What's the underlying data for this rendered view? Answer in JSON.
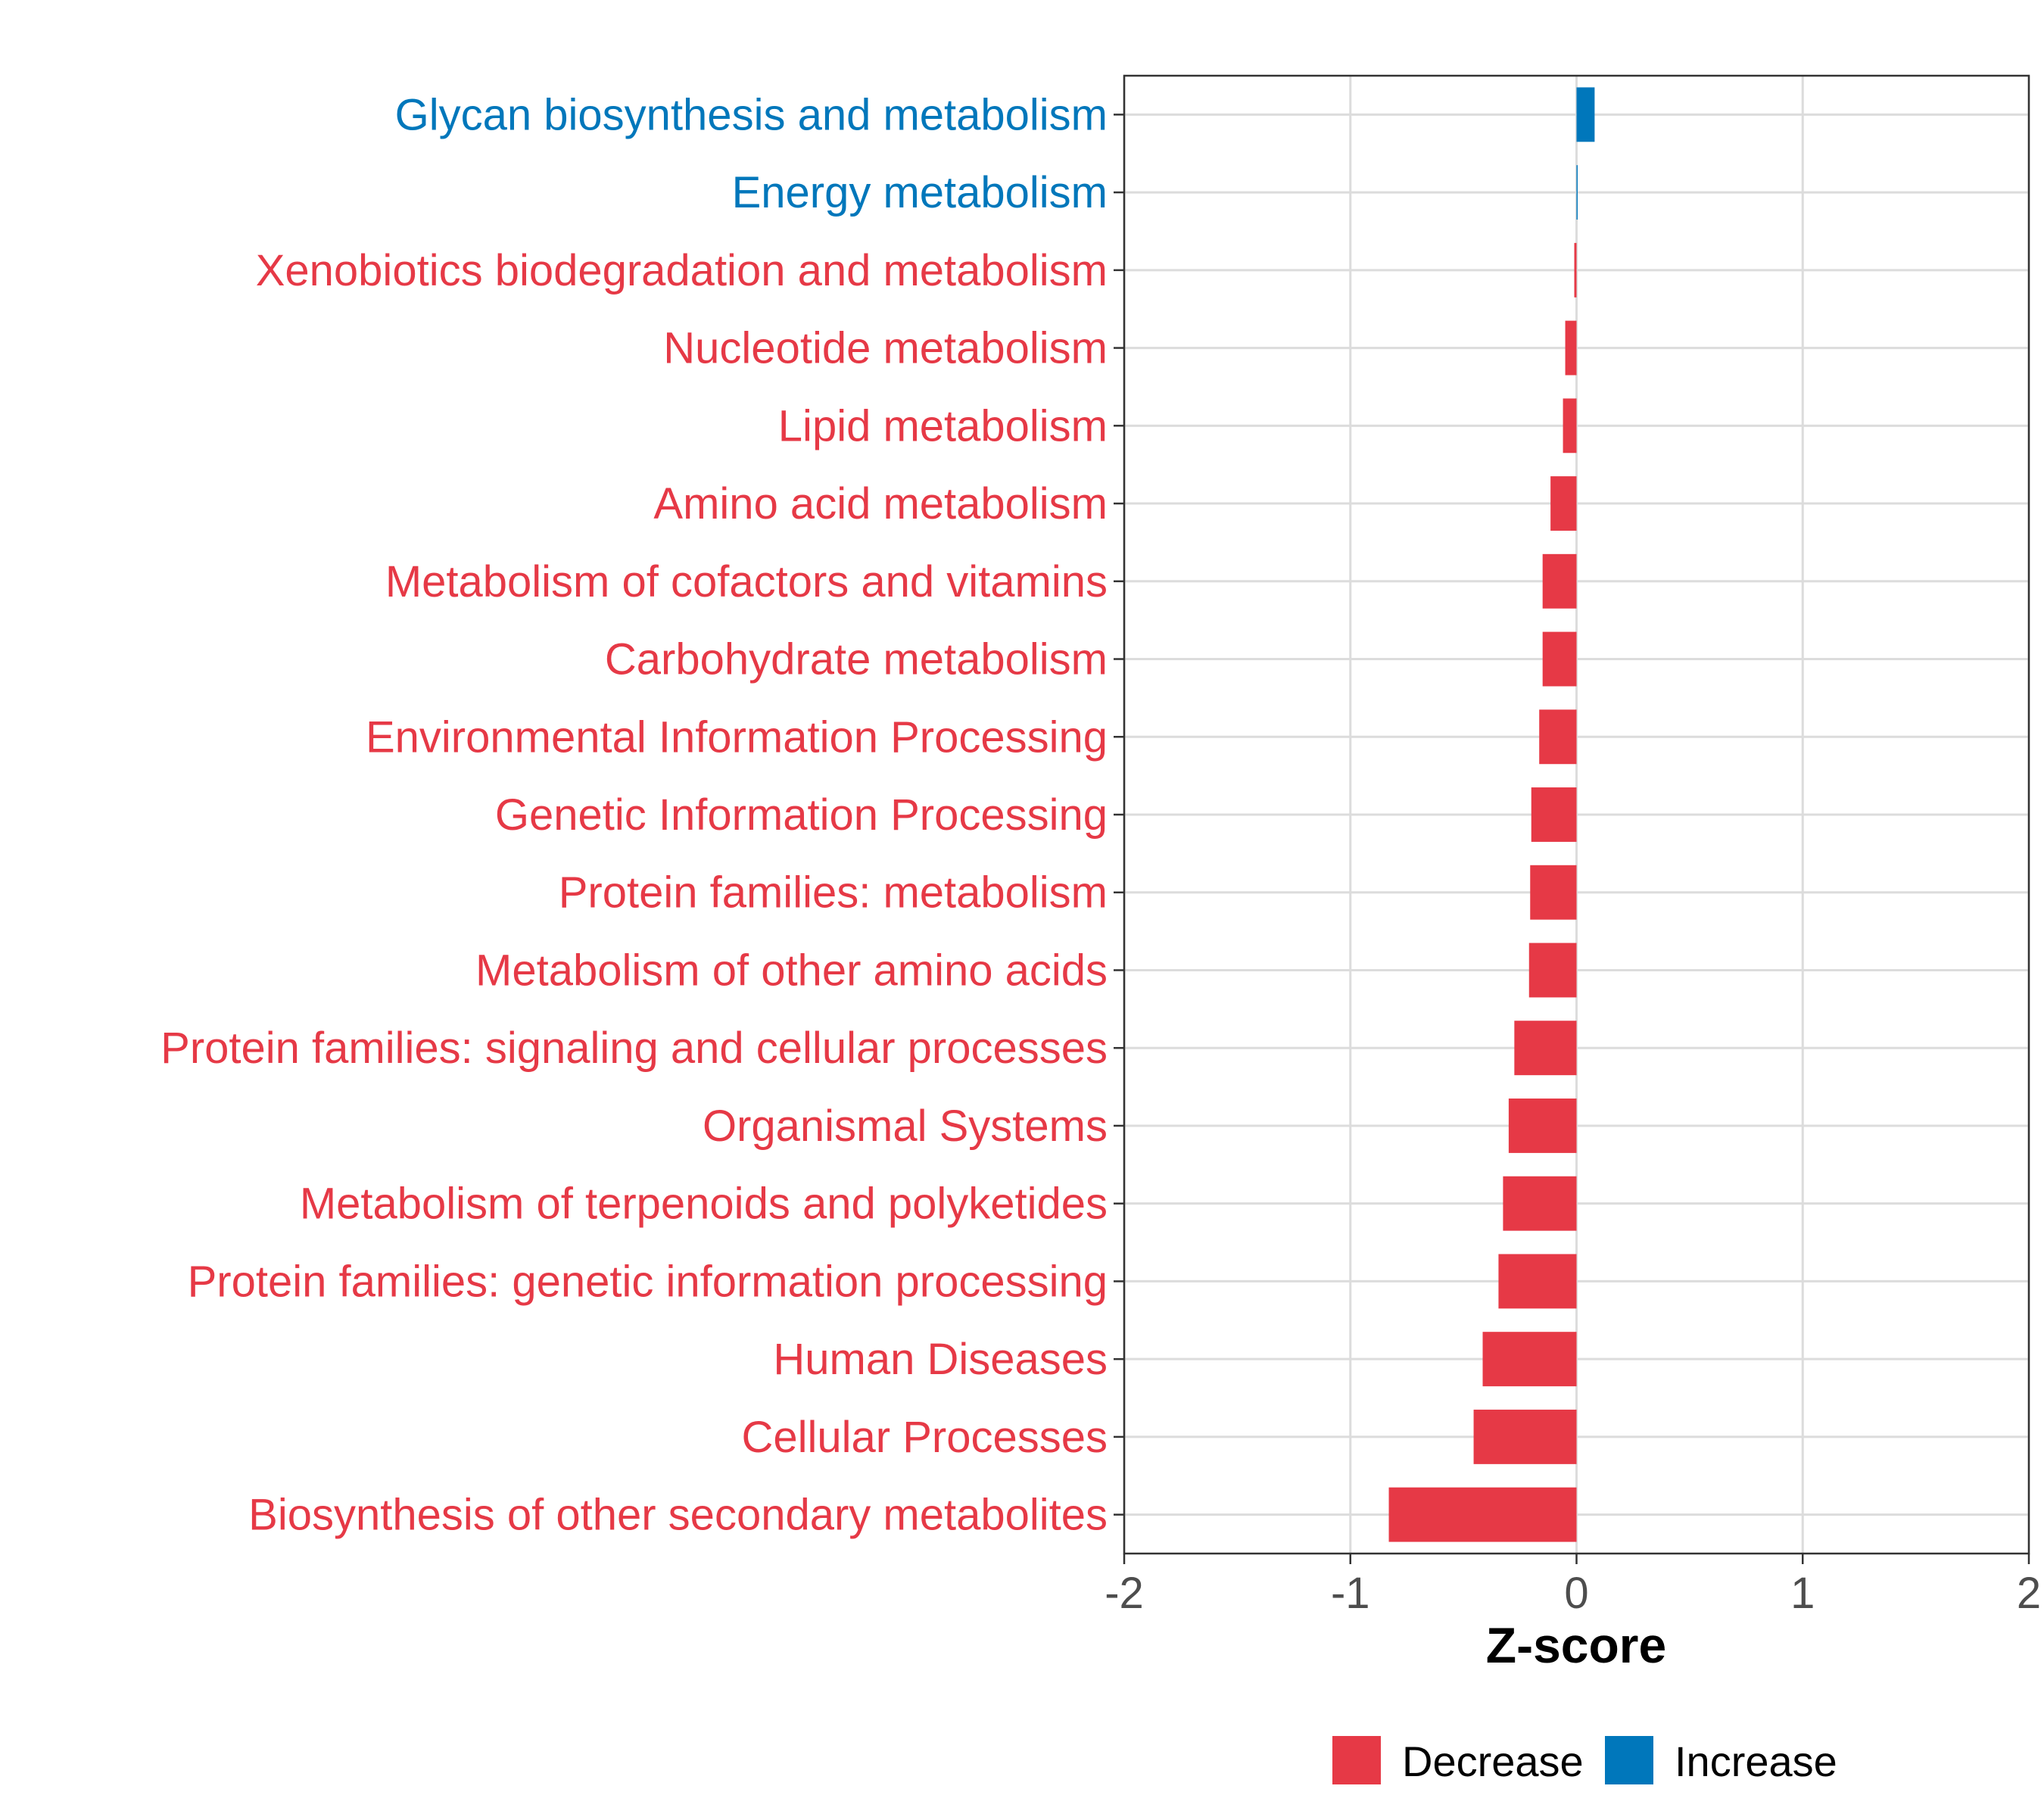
{
  "chart_data": {
    "type": "bar",
    "orientation": "horizontal",
    "categories": [
      "Glycan biosynthesis and metabolism",
      "Energy metabolism",
      "Xenobiotics biodegradation and metabolism",
      "Nucleotide metabolism",
      "Lipid metabolism",
      "Amino acid metabolism",
      "Metabolism of cofactors and vitamins",
      "Carbohydrate metabolism",
      "Environmental Information Processing",
      "Genetic Information Processing",
      "Protein families: metabolism",
      "Metabolism of other amino acids",
      "Protein families: signaling and cellular processes",
      "Organismal Systems",
      "Metabolism of terpenoids and polyketides",
      "Protein families: genetic information processing",
      "Human Diseases",
      "Cellular Processes",
      "Biosynthesis of other secondary metabolites"
    ],
    "values": [
      0.08,
      0.005,
      -0.01,
      -0.05,
      -0.06,
      -0.115,
      -0.15,
      -0.15,
      -0.165,
      -0.2,
      -0.205,
      -0.21,
      -0.275,
      -0.3,
      -0.325,
      -0.345,
      -0.415,
      -0.455,
      -0.83
    ],
    "groups": [
      "Increase",
      "Increase",
      "Decrease",
      "Decrease",
      "Decrease",
      "Decrease",
      "Decrease",
      "Decrease",
      "Decrease",
      "Decrease",
      "Decrease",
      "Decrease",
      "Decrease",
      "Decrease",
      "Decrease",
      "Decrease",
      "Decrease",
      "Decrease",
      "Decrease"
    ],
    "xlabel": "Z-score",
    "xlim": [
      -2,
      2
    ],
    "xticks": [
      -2,
      -1,
      0,
      1,
      2
    ],
    "xtick_labels": [
      "-2",
      "-1",
      "0",
      "1",
      "2"
    ],
    "grid": true,
    "legend": {
      "placement": "bottom",
      "items": [
        {
          "label": "Decrease",
          "color": "#E63946"
        },
        {
          "label": "Increase",
          "color": "#0077BB"
        }
      ]
    },
    "colors": {
      "Decrease": "#E63946",
      "Increase": "#0077BB",
      "grid": "#DCDCDC",
      "axis": "#333333",
      "tick_text": "#4D4D4D"
    }
  }
}
